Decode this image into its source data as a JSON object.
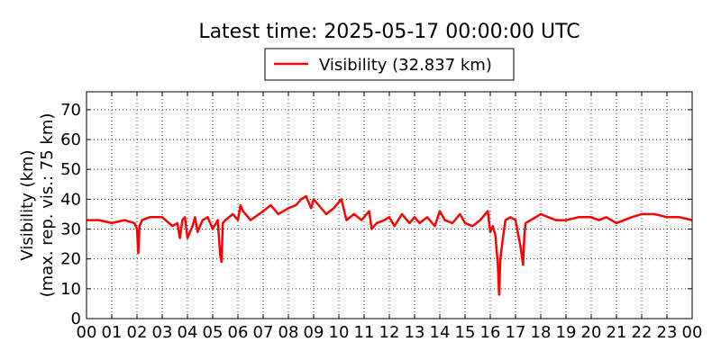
{
  "chart_data": {
    "type": "line",
    "title": "Latest time: 2025-05-17 00:00:00 UTC",
    "ylabel_lines": [
      "Visibility (km)",
      "(max. rep. vis.: 75 km)"
    ],
    "xlabel": "",
    "xlim": [
      0,
      24
    ],
    "ylim": [
      0,
      76
    ],
    "xticks": [
      "00",
      "01",
      "02",
      "03",
      "04",
      "05",
      "06",
      "07",
      "08",
      "09",
      "10",
      "11",
      "12",
      "13",
      "14",
      "15",
      "16",
      "17",
      "18",
      "19",
      "20",
      "21",
      "22",
      "23",
      "00"
    ],
    "yticks": [
      0,
      10,
      20,
      30,
      40,
      50,
      60,
      70
    ],
    "grid": true,
    "legend_position": "top-center",
    "series": [
      {
        "name": "Visibility (32.837 km)",
        "color": "#ff0000",
        "x": [
          0.0,
          0.5,
          1.0,
          1.5,
          1.9,
          2.0,
          2.05,
          2.1,
          2.2,
          2.5,
          3.0,
          3.4,
          3.6,
          3.7,
          3.8,
          3.9,
          4.0,
          4.2,
          4.3,
          4.4,
          4.6,
          4.8,
          5.0,
          5.2,
          5.3,
          5.35,
          5.4,
          5.5,
          5.8,
          6.0,
          6.1,
          6.2,
          6.5,
          7.0,
          7.3,
          7.6,
          8.0,
          8.3,
          8.5,
          8.7,
          8.9,
          9.0,
          9.2,
          9.5,
          9.8,
          10.0,
          10.1,
          10.3,
          10.6,
          10.9,
          11.0,
          11.2,
          11.3,
          11.5,
          11.8,
          12.0,
          12.2,
          12.5,
          12.8,
          13.0,
          13.2,
          13.5,
          13.8,
          14.0,
          14.2,
          14.5,
          14.8,
          15.0,
          15.3,
          15.6,
          15.9,
          16.0,
          16.1,
          16.2,
          16.3,
          16.35,
          16.4,
          16.5,
          16.6,
          16.8,
          17.0,
          17.2,
          17.3,
          17.35,
          17.4,
          17.6,
          17.8,
          18.0,
          18.3,
          18.6,
          19.0,
          19.5,
          20.0,
          20.3,
          20.6,
          21.0,
          21.3,
          21.6,
          22.0,
          22.5,
          23.0,
          23.5,
          24.0
        ],
        "values": [
          33,
          33,
          32,
          33,
          32,
          30,
          22,
          31,
          33,
          34,
          34,
          31,
          32,
          27,
          33,
          34,
          27,
          31,
          34,
          29,
          33,
          34,
          30,
          33,
          21,
          19,
          32,
          33,
          35,
          33,
          38,
          36,
          33,
          36,
          38,
          35,
          37,
          38,
          40,
          41,
          37,
          40,
          38,
          35,
          37,
          39,
          40,
          33,
          35,
          33,
          34,
          36,
          30,
          32,
          33,
          34,
          31,
          35,
          32,
          34,
          32,
          34,
          31,
          36,
          33,
          32,
          35,
          32,
          31,
          33,
          36,
          29,
          31,
          28,
          18,
          8,
          20,
          27,
          33,
          34,
          33,
          24,
          18,
          28,
          32,
          33,
          34,
          35,
          34,
          33,
          33,
          34,
          34,
          33,
          34,
          32,
          33,
          34,
          35,
          35,
          34,
          34,
          33
        ]
      }
    ]
  }
}
